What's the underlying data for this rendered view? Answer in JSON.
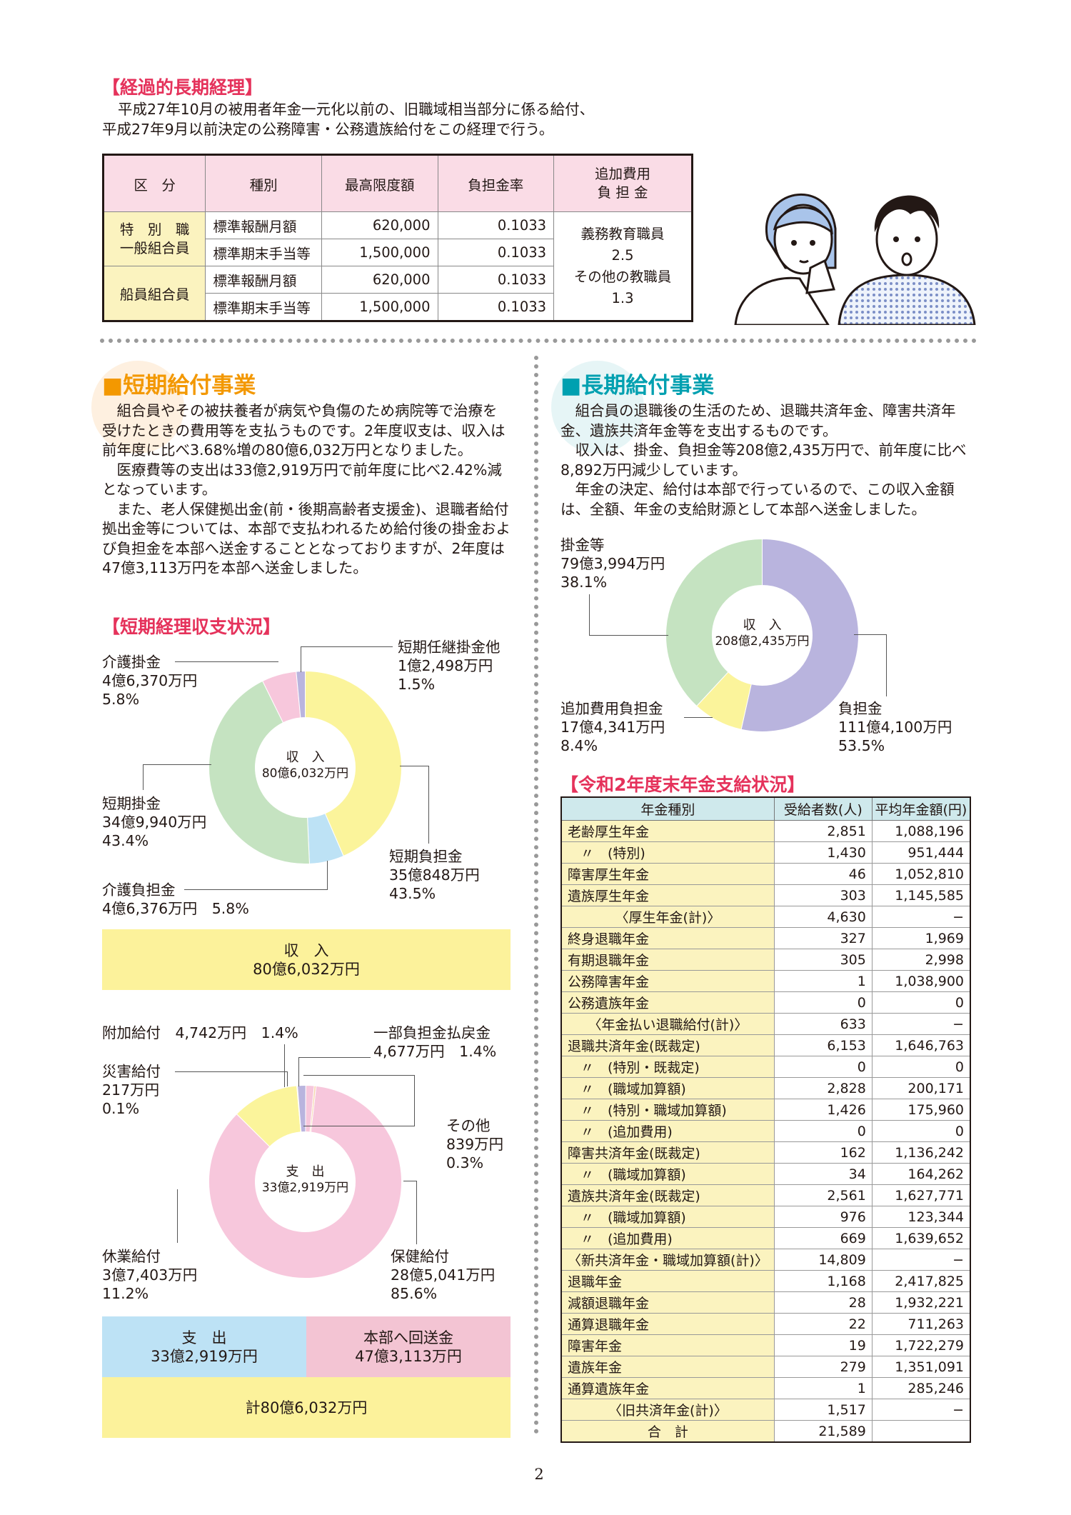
{
  "long_term": {
    "heading": "【経過的長期経理】",
    "description": [
      "平成27年10月の被用者年金一元化以前の、旧職域相当部分に係る給付、",
      "平成27年9月以前決定の公務障害・公務遺族給付をこの経理で行う。"
    ],
    "headers": [
      "区　分",
      "種別",
      "最高限度額",
      "負担金率",
      "追加費用",
      "負 担 金"
    ],
    "rows": [
      {
        "group": "特　別　職",
        "group2": "一般組合員",
        "type": "標準報酬月額",
        "max": "620,000",
        "rate": "0.1033"
      },
      {
        "type": "標準期末手当等",
        "max": "1,500,000",
        "rate": "0.1033"
      },
      {
        "group": "船員組合員",
        "type": "標準報酬月額",
        "max": "620,000",
        "rate": "0.1033"
      },
      {
        "type": "標準期末手当等",
        "max": "1,500,000",
        "rate": "0.1033"
      }
    ],
    "payment": [
      "義務教育職員",
      "2.5",
      "その他の教職員",
      "1.3"
    ]
  },
  "short_term": {
    "title": "短期給付事業",
    "paragraphs": [
      "組合員やその被扶養者が病気や負傷のため病院等で治療を受けたときの費用等を支払うものです。2年度収支は、収入は前年度に比べ3.68%増の80億6,032万円となりました。",
      "医療費等の支出は33億2,919万円で前年度に比べ2.42%減となっています。",
      "また、老人保健拠出金(前・後期高齢者支援金)、退職者給付拠出金等については、本部で支払われるため給付後の掛金および負担金を本部へ送金することとなっておりますが、2年度は47億3,113万円を本部へ送金しました。"
    ],
    "sub_heading": "【短期経理収支状況】",
    "income_center": [
      "収　入",
      "80億6,032万円"
    ],
    "income_labels": {
      "kaigo_kake": [
        "介護掛金",
        "4億6,370万円",
        "5.8%"
      ],
      "ninkei": [
        "短期任継掛金他",
        "1億2,498万円",
        "1.5%"
      ],
      "tanki_kake": [
        "短期掛金",
        "34億9,940万円",
        "43.4%"
      ],
      "tanki_futan": [
        "短期負担金",
        "35億848万円",
        "43.5%"
      ],
      "kaigo_futan": [
        "介護負担金",
        "4億6,376万円　5.8%"
      ]
    },
    "income_box": [
      "収　入",
      "80億6,032万円"
    ],
    "expense_center": [
      "支　出",
      "33億2,919万円"
    ],
    "expense_labels": {
      "fuka": [
        "附加給付　4,742万円　1.4%"
      ],
      "ichibu": [
        "一部負担金払戻金",
        "4,677万円　1.4%"
      ],
      "saigai": [
        "災害給付",
        "217万円",
        "0.1%"
      ],
      "sonota": [
        "その他",
        "839万円",
        "0.3%"
      ],
      "kyugyo": [
        "休業給付",
        "3億7,403万円",
        "11.2%"
      ],
      "hoken": [
        "保健給付",
        "28億5,041万円",
        "85.6%"
      ]
    },
    "bottom_boxes": {
      "expense": [
        "支　出",
        "33億2,919万円"
      ],
      "remit": [
        "本部へ回送金",
        "47億3,113万円"
      ],
      "total": "計80億6,032万円"
    }
  },
  "long_term_benefit": {
    "title": "長期給付事業",
    "paragraphs": [
      "組合員の退職後の生活のため、退職共済年金、障害共済年金、遺族共済年金等を支出するものです。",
      "収入は、掛金、負担金等208億2,435万円で、前年度に比べ8,892万円減少しています。",
      "年金の決定、給付は本部で行っているので、この収入金額は、全額、年金の支給財源として本部へ送金しました。"
    ],
    "income_center": [
      "収　入",
      "208億2,435万円"
    ],
    "labels": {
      "kake": [
        "掛金等",
        "79億3,994万円",
        "38.1%"
      ],
      "tsuika": [
        "追加費用負担金",
        "17億4,341万円",
        "8.4%"
      ],
      "futan": [
        "負担金",
        "111億4,100万円",
        "53.5%"
      ]
    },
    "table_heading": "【令和2年度末年金支給状況】",
    "table_headers": [
      "年金種別",
      "受給者数(人)",
      "平均年金額(円)"
    ],
    "table_rows": [
      {
        "name": "老齢厚生年金",
        "count": "2,851",
        "avg": "1,088,196",
        "style": ""
      },
      {
        "name": "〃　(特別)",
        "count": "1,430",
        "avg": "951,444",
        "style": "sub"
      },
      {
        "name": "障害厚生年金",
        "count": "46",
        "avg": "1,052,810",
        "style": ""
      },
      {
        "name": "遺族厚生年金",
        "count": "303",
        "avg": "1,145,585",
        "style": ""
      },
      {
        "name": "〈厚生年金(計)〉",
        "count": "4,630",
        "avg": "−",
        "style": "tot"
      },
      {
        "name": "終身退職年金",
        "count": "327",
        "avg": "1,969",
        "style": ""
      },
      {
        "name": "有期退職年金",
        "count": "305",
        "avg": "2,998",
        "style": ""
      },
      {
        "name": "公務障害年金",
        "count": "1",
        "avg": "1,038,900",
        "style": ""
      },
      {
        "name": "公務遺族年金",
        "count": "0",
        "avg": "0",
        "style": ""
      },
      {
        "name": "〈年金払い退職給付(計)〉",
        "count": "633",
        "avg": "−",
        "style": "tot"
      },
      {
        "name": "退職共済年金(既裁定)",
        "count": "6,153",
        "avg": "1,646,763",
        "style": ""
      },
      {
        "name": "〃　(特別・既裁定)",
        "count": "0",
        "avg": "0",
        "style": "sub"
      },
      {
        "name": "〃　(職域加算額)",
        "count": "2,828",
        "avg": "200,171",
        "style": "sub"
      },
      {
        "name": "〃　(特別・職域加算額)",
        "count": "1,426",
        "avg": "175,960",
        "style": "sub"
      },
      {
        "name": "〃　(追加費用)",
        "count": "0",
        "avg": "0",
        "style": "sub"
      },
      {
        "name": "障害共済年金(既裁定)",
        "count": "162",
        "avg": "1,136,242",
        "style": ""
      },
      {
        "name": "〃　(職域加算額)",
        "count": "34",
        "avg": "164,262",
        "style": "sub"
      },
      {
        "name": "遺族共済年金(既裁定)",
        "count": "2,561",
        "avg": "1,627,771",
        "style": ""
      },
      {
        "name": "〃　(職域加算額)",
        "count": "976",
        "avg": "123,344",
        "style": "sub"
      },
      {
        "name": "〃　(追加費用)",
        "count": "669",
        "avg": "1,639,652",
        "style": "sub"
      },
      {
        "name": "〈新共済年金・職域加算額(計)〉",
        "count": "14,809",
        "avg": "−",
        "style": ""
      },
      {
        "name": "退職年金",
        "count": "1,168",
        "avg": "2,417,825",
        "style": ""
      },
      {
        "name": "減額退職年金",
        "count": "28",
        "avg": "1,932,221",
        "style": ""
      },
      {
        "name": "通算退職年金",
        "count": "22",
        "avg": "711,263",
        "style": ""
      },
      {
        "name": "障害年金",
        "count": "19",
        "avg": "1,722,279",
        "style": ""
      },
      {
        "name": "遺族年金",
        "count": "279",
        "avg": "1,351,091",
        "style": ""
      },
      {
        "name": "通算遺族年金",
        "count": "1",
        "avg": "285,246",
        "style": ""
      },
      {
        "name": "〈旧共済年金(計)〉",
        "count": "1,517",
        "avg": "−",
        "style": "tot"
      },
      {
        "name": "合　計",
        "count": "21,589",
        "avg": "",
        "style": "tot"
      }
    ]
  },
  "page_number": "2",
  "colors": {
    "heading_red": "#e5325b",
    "yellow": "#fbf49b",
    "green": "#c5e3c1",
    "pink": "#f7c7dc",
    "purple": "#b9b4de",
    "lightblue": "#bde2f5",
    "light_yellow_box": "#fcf29b"
  },
  "chart_data": [
    {
      "type": "pie",
      "title": "収入 80億6,032万円",
      "categories": [
        "短期負担金",
        "短期掛金",
        "介護負担金",
        "介護掛金",
        "短期任継掛金他"
      ],
      "values": [
        43.5,
        43.4,
        5.8,
        5.8,
        1.5
      ],
      "colors": [
        "#fbf49b",
        "#c5e3c1",
        "#bde2f5",
        "#f7c7dc",
        "#b9b4de"
      ]
    },
    {
      "type": "pie",
      "title": "支出 33億2,919万円",
      "categories": [
        "保健給付",
        "休業給付",
        "災害給付",
        "附加給付",
        "一部負担金払戻金",
        "その他"
      ],
      "values": [
        85.6,
        11.2,
        0.1,
        1.4,
        1.4,
        0.3
      ],
      "colors": [
        "#f7c7dc",
        "#fbf49b",
        "#bde2f5",
        "#b9b4de",
        "#f7c7dc",
        "#f6d2a8"
      ]
    },
    {
      "type": "pie",
      "title": "収入 208億2,435万円",
      "categories": [
        "負担金",
        "追加費用負担金",
        "掛金等"
      ],
      "values": [
        53.5,
        8.4,
        38.1
      ],
      "colors": [
        "#b9b4de",
        "#fbf49b",
        "#c5e3c1"
      ]
    }
  ]
}
